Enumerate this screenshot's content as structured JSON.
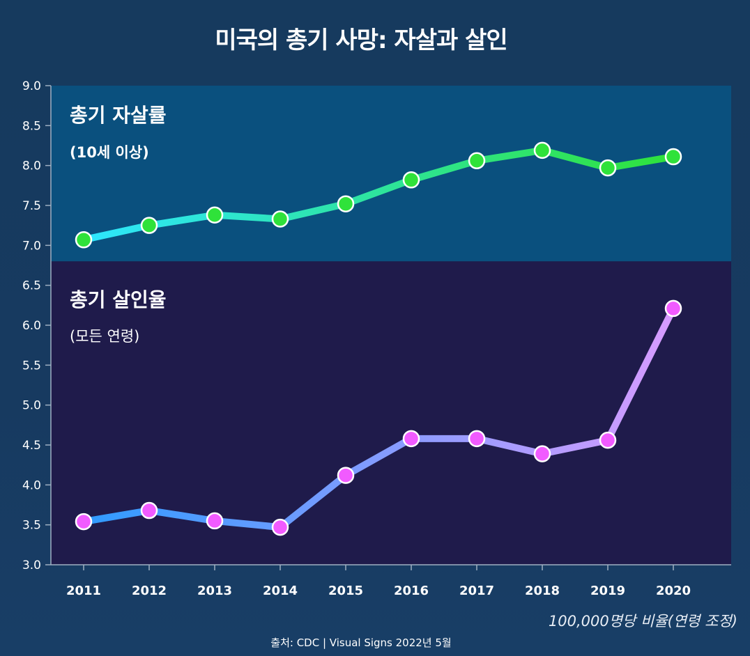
{
  "chart_data": {
    "type": "line",
    "title": "미국의 총기  사망: 자살과 살인",
    "categories": [
      "2011",
      "2012",
      "2013",
      "2014",
      "2015",
      "2016",
      "2017",
      "2018",
      "2019",
      "2020"
    ],
    "series": [
      {
        "name": "총기 자살률",
        "subtitle": "(10세 이상)",
        "values": [
          7.07,
          7.25,
          7.38,
          7.33,
          7.52,
          7.82,
          8.06,
          8.19,
          7.97,
          8.11
        ],
        "line_start_color": "#2ee6ff",
        "line_end_color": "#2fe23a",
        "marker_color": "#2fe23a"
      },
      {
        "name": "총기 살인율",
        "subtitle": "(모든 연령)",
        "values": [
          3.54,
          3.68,
          3.55,
          3.47,
          4.12,
          4.58,
          4.58,
          4.39,
          4.56,
          6.21
        ],
        "line_start_color": "#2f9bff",
        "line_end_color": "#d79cff",
        "marker_color": "#f15bff"
      }
    ],
    "yticks": [
      "3.0",
      "3.5",
      "4.0",
      "4.5",
      "5.0",
      "5.5",
      "6.0",
      "6.5",
      "7.0",
      "7.5",
      "8.0",
      "8.5",
      "9.0"
    ],
    "ylim": [
      3.0,
      9.0
    ],
    "band_split": 6.8,
    "upper_band_color": "#0a507e",
    "lower_band_color": "#1f1b4b",
    "unit_note": "100,000명당 비율(연령 조정)",
    "source": "출처: CDC | Visual Signs 2022년 5월"
  }
}
